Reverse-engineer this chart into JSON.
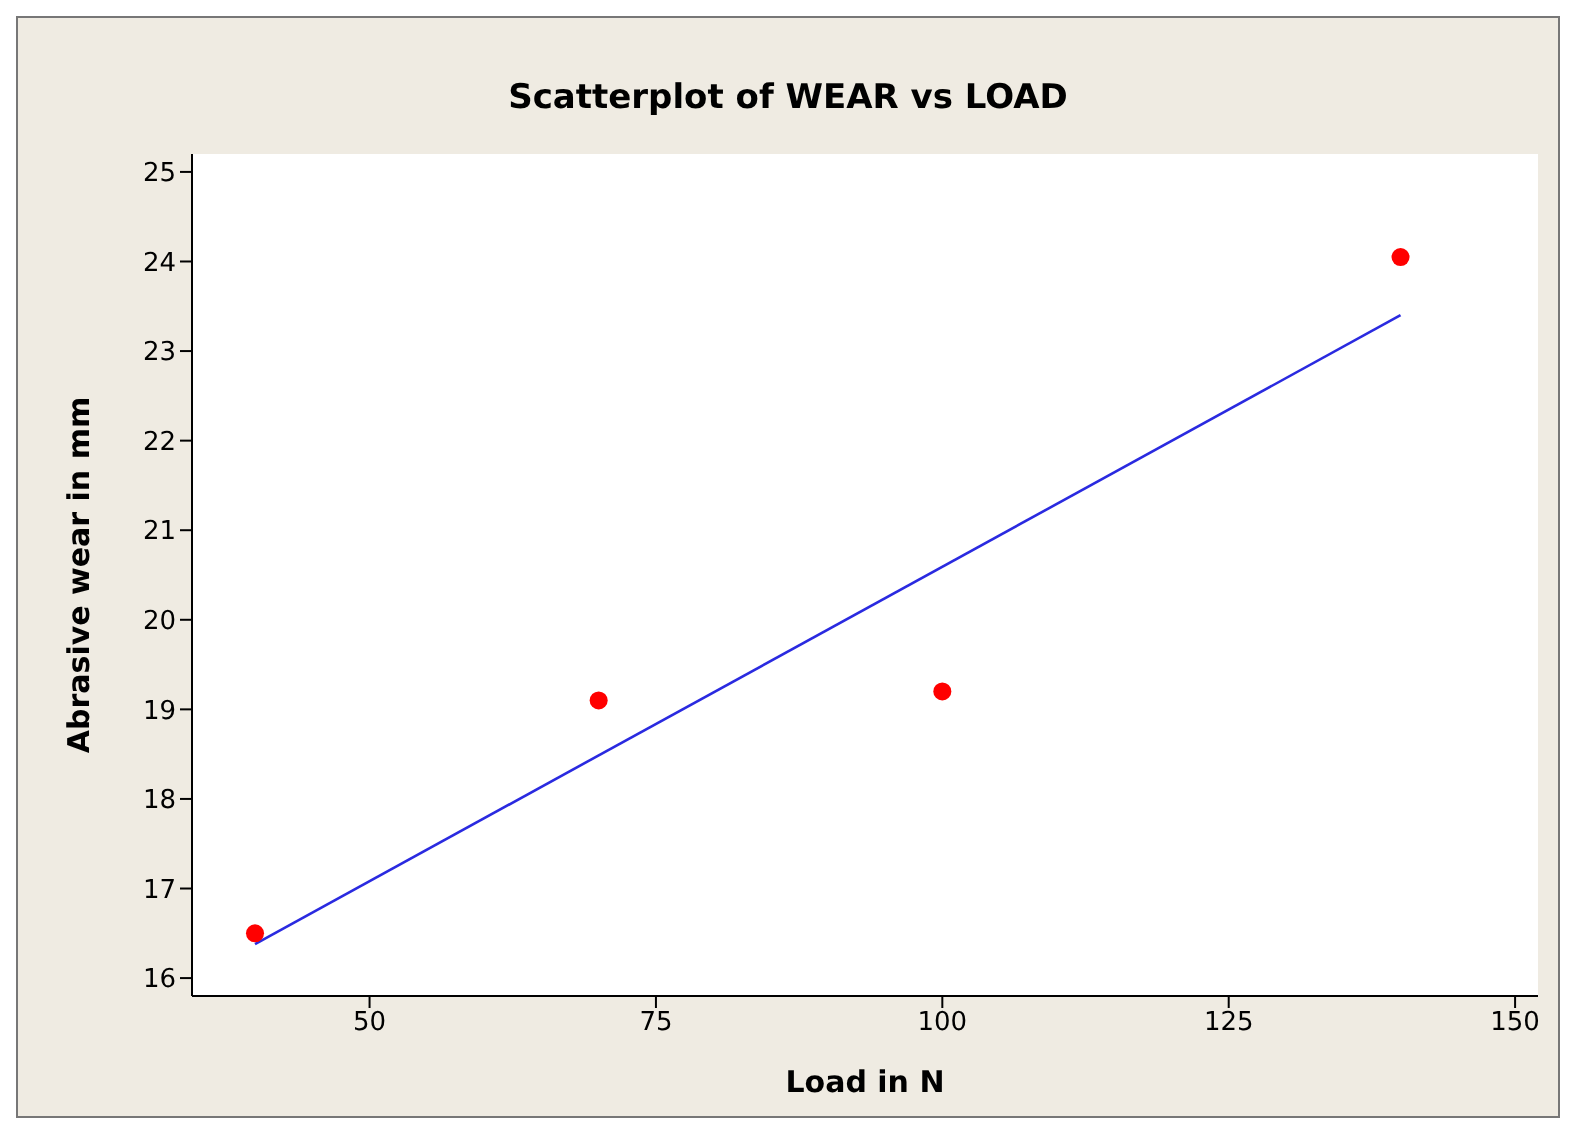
{
  "chart_data": {
    "type": "scatter",
    "title": "Scatterplot of WEAR vs LOAD",
    "xlabel": "Load in N",
    "ylabel": "Abrasive wear in mm",
    "xlim": [
      34.5,
      152
    ],
    "xticks": [
      50,
      75,
      100,
      125,
      150
    ],
    "ylim": [
      15.8,
      25.2
    ],
    "yticks": [
      16,
      17,
      18,
      19,
      20,
      21,
      22,
      23,
      24,
      25
    ],
    "grid": false,
    "marker": "circle",
    "series": [
      {
        "color": "#ff0000",
        "x": [
          40,
          70,
          100,
          140
        ],
        "values": [
          16.5,
          19.1,
          19.2,
          24.05
        ]
      },
      {
        "type": "line",
        "color": "#2a2ae0",
        "marker": "none",
        "line_style": "solid",
        "x": [
          40,
          140
        ],
        "values": [
          16.38,
          23.4
        ]
      }
    ]
  }
}
